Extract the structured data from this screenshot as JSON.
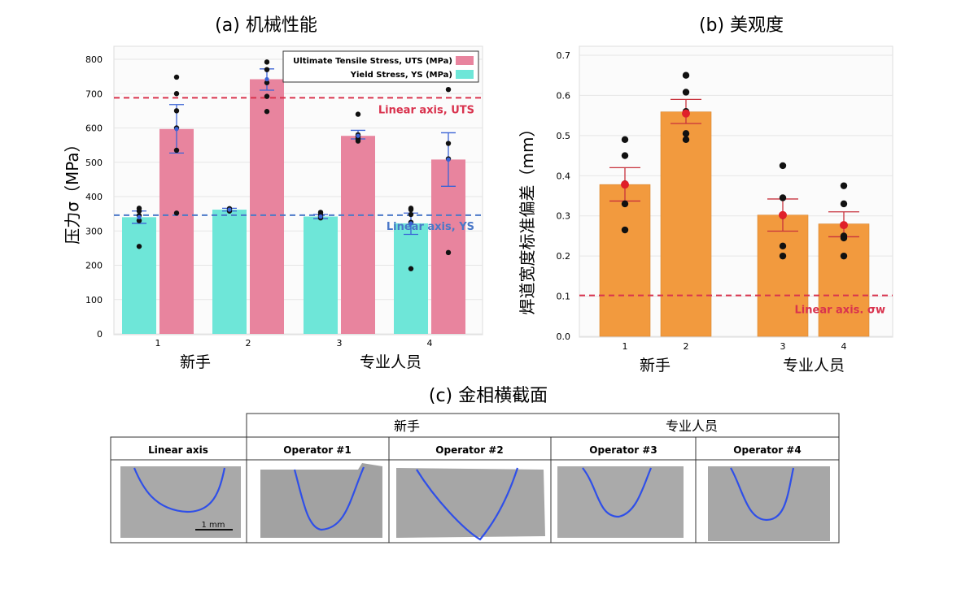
{
  "chart_data": [
    {
      "type": "bar",
      "id": "a",
      "title": "(a) 机械性能",
      "ylabel": "压力σ（MPa）",
      "ylim": [
        0,
        800
      ],
      "yticks": [
        0,
        100,
        200,
        300,
        400,
        500,
        600,
        700,
        800
      ],
      "categories": [
        "1",
        "2",
        "3",
        "4"
      ],
      "group_labels": [
        "新手",
        "专业人员"
      ],
      "legend": {
        "placement": "top-right",
        "uts": "Ultimate Tensile Stress, UTS (MPa)",
        "ys": "Yield Stress, YS (MPa)"
      },
      "series": [
        {
          "name": "Yield Stress, YS (MPa)",
          "color": "#6EE6D8",
          "values": [
            340,
            362,
            342,
            322
          ],
          "err": [
            [
              322,
              358
            ],
            [
              358,
              366
            ],
            [
              336,
              348
            ],
            [
              290,
              352
            ]
          ],
          "points": [
            [
              255,
              330,
              345,
              358,
              366
            ],
            [
              358,
              362,
              365
            ],
            [
              338,
              342,
              347,
              354
            ],
            [
              190,
              325,
              348,
              362,
              366
            ]
          ]
        },
        {
          "name": "Ultimate Tensile Stress, UTS (MPa)",
          "color": "#E8849E",
          "values": [
            597,
            742,
            577,
            508
          ],
          "err": [
            [
              527,
              668
            ],
            [
              710,
              772
            ],
            [
              568,
              593
            ],
            [
              430,
              586
            ]
          ],
          "points": [
            [
              352,
              535,
              600,
              650,
              700,
              748
            ],
            [
              648,
              692,
              732,
              770,
              792
            ],
            [
              562,
              568,
              575,
              580,
              640
            ],
            [
              237,
              510,
              555,
              712
            ]
          ]
        }
      ],
      "reference_lines": [
        {
          "label": "Linear axis, UTS",
          "value": 688,
          "color": "#D9334E"
        },
        {
          "label": "Linear axis, YS",
          "value": 346,
          "color": "#4A78C8"
        }
      ]
    },
    {
      "type": "bar",
      "id": "b",
      "title": "(b) 美观度",
      "ylabel": "焊道宽度标准偏差（mm）",
      "ylim": [
        0,
        0.7
      ],
      "yticks": [
        0.0,
        0.1,
        0.2,
        0.3,
        0.4,
        0.5,
        0.6,
        0.7
      ],
      "categories": [
        "1",
        "2",
        "3",
        "4"
      ],
      "group_labels": [
        "新手",
        "专业人员"
      ],
      "series": [
        {
          "name": "bead width std",
          "color": "#F29A3E",
          "values": [
            0.378,
            0.559,
            0.302,
            0.28
          ],
          "err": [
            [
              0.337,
              0.42
            ],
            [
              0.53,
              0.59
            ],
            [
              0.262,
              0.342
            ],
            [
              0.248,
              0.31
            ]
          ],
          "means": [
            0.378,
            0.555,
            0.302,
            0.277
          ],
          "points": [
            [
              0.265,
              0.33,
              0.38,
              0.45,
              0.49
            ],
            [
              0.49,
              0.505,
              0.56,
              0.608,
              0.65
            ],
            [
              0.2,
              0.225,
              0.3,
              0.345,
              0.425
            ],
            [
              0.2,
              0.245,
              0.25,
              0.33,
              0.375
            ]
          ]
        }
      ],
      "reference_lines": [
        {
          "label": "Linear axis. σw",
          "value": 0.102,
          "color": "#D9334E"
        }
      ]
    }
  ],
  "tick_labels": {
    "a": [
      "0",
      "100",
      "200",
      "300",
      "400",
      "500",
      "600",
      "700",
      "800"
    ],
    "b": [
      "0.0",
      "0.1",
      "0.2",
      "0.3",
      "0.4",
      "0.5",
      "0.6",
      "0.7"
    ]
  },
  "cross_section": {
    "title": "(c) 金相横截面",
    "novice_header": "新手",
    "expert_header": "专业人员",
    "columns": [
      "Linear axis",
      "Operator #1",
      "Operator #2",
      "Operator #3",
      "Operator #4"
    ],
    "scale_bar": "1 mm",
    "bead_color": "#2F4FE8"
  }
}
